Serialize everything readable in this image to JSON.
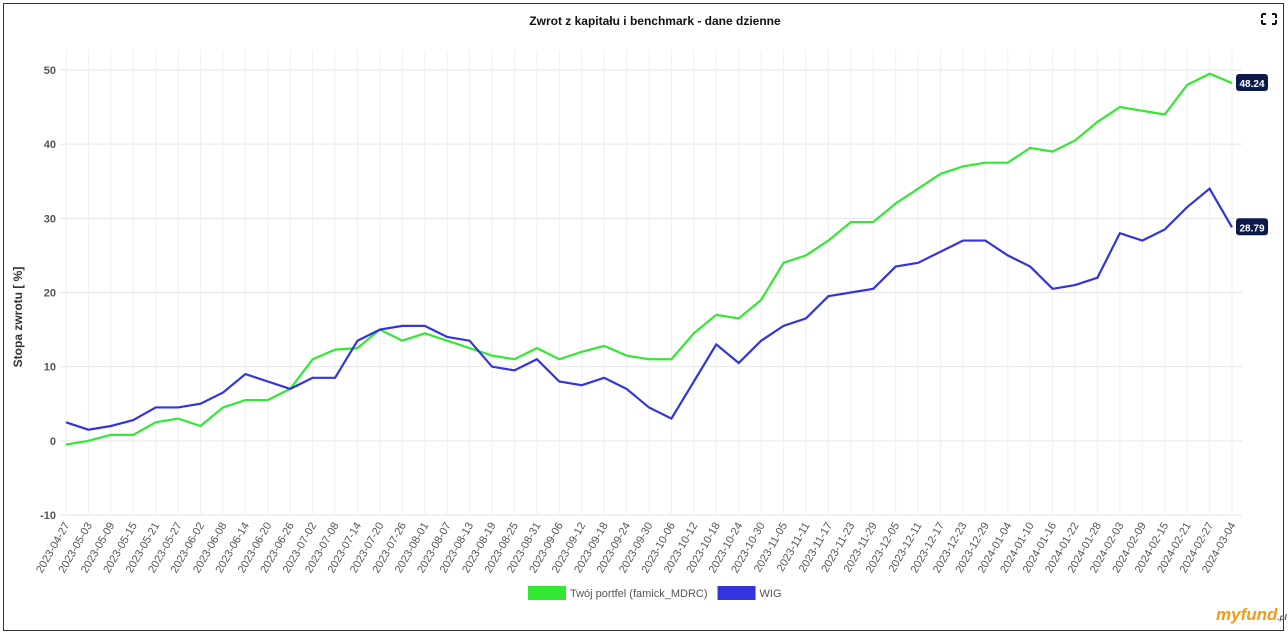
{
  "chart_data": {
    "type": "line",
    "title": "Zwrot z kapitału i benchmark - dane dzienne",
    "y_label": "Stopa zwrotu [ %]",
    "categories": [
      "2023-04-27",
      "2023-05-03",
      "2023-05-09",
      "2023-05-15",
      "2023-05-21",
      "2023-05-27",
      "2023-06-02",
      "2023-06-08",
      "2023-06-14",
      "2023-06-20",
      "2023-06-26",
      "2023-07-02",
      "2023-07-08",
      "2023-07-14",
      "2023-07-20",
      "2023-07-26",
      "2023-08-01",
      "2023-08-07",
      "2023-08-13",
      "2023-08-19",
      "2023-08-25",
      "2023-08-31",
      "2023-09-06",
      "2023-09-12",
      "2023-09-18",
      "2023-09-24",
      "2023-09-30",
      "2023-10-06",
      "2023-10-12",
      "2023-10-18",
      "2023-10-24",
      "2023-10-30",
      "2023-11-05",
      "2023-11-11",
      "2023-11-17",
      "2023-11-23",
      "2023-11-29",
      "2023-12-05",
      "2023-12-11",
      "2023-12-17",
      "2023-12-23",
      "2023-12-29",
      "2024-01-04",
      "2024-01-10",
      "2024-01-16",
      "2024-01-22",
      "2024-01-28",
      "2024-02-03",
      "2024-02-09",
      "2024-02-15",
      "2024-02-21",
      "2024-02-27",
      "2024-03-04"
    ],
    "series": [
      {
        "name": "Twój portfel (famick_MDRC)",
        "color": "#33e833",
        "values": [
          -0.5,
          0,
          0.8,
          0.8,
          2.5,
          3,
          2,
          4.5,
          5.5,
          5.5,
          7,
          11,
          12.3,
          12.5,
          15,
          13.5,
          14.5,
          13.5,
          12.5,
          11.5,
          11,
          12.5,
          11,
          12,
          12.8,
          11.5,
          11,
          11,
          14.5,
          17,
          16.5,
          19,
          24,
          25,
          27,
          29.5,
          29.5,
          32,
          34,
          36,
          37,
          37.5,
          37.5,
          39.5,
          39,
          40.5,
          43,
          45,
          44.5,
          44,
          48,
          49.5,
          48.24
        ]
      },
      {
        "name": "WIG",
        "color": "#3333e0",
        "values": [
          2.5,
          1.5,
          2,
          2.8,
          4.5,
          4.5,
          5,
          6.5,
          9,
          8,
          7,
          8.5,
          8.5,
          13.5,
          15,
          15.5,
          15.5,
          14,
          13.5,
          10,
          9.5,
          11,
          8,
          7.5,
          8.5,
          7,
          4.5,
          3,
          8,
          13,
          10.5,
          13.5,
          15.5,
          16.5,
          19.5,
          20,
          20.5,
          23.5,
          24,
          25.5,
          27,
          27,
          25,
          23.5,
          20.5,
          21,
          22,
          28,
          27,
          28.5,
          31.5,
          34,
          28.79
        ]
      }
    ],
    "ylim": [
      -10,
      50
    ],
    "yticks": [
      -10,
      0,
      10,
      20,
      30,
      40,
      50
    ],
    "grid": true,
    "legend": "bottom",
    "logo": "myfund",
    "logo_suffix": ".pl"
  }
}
